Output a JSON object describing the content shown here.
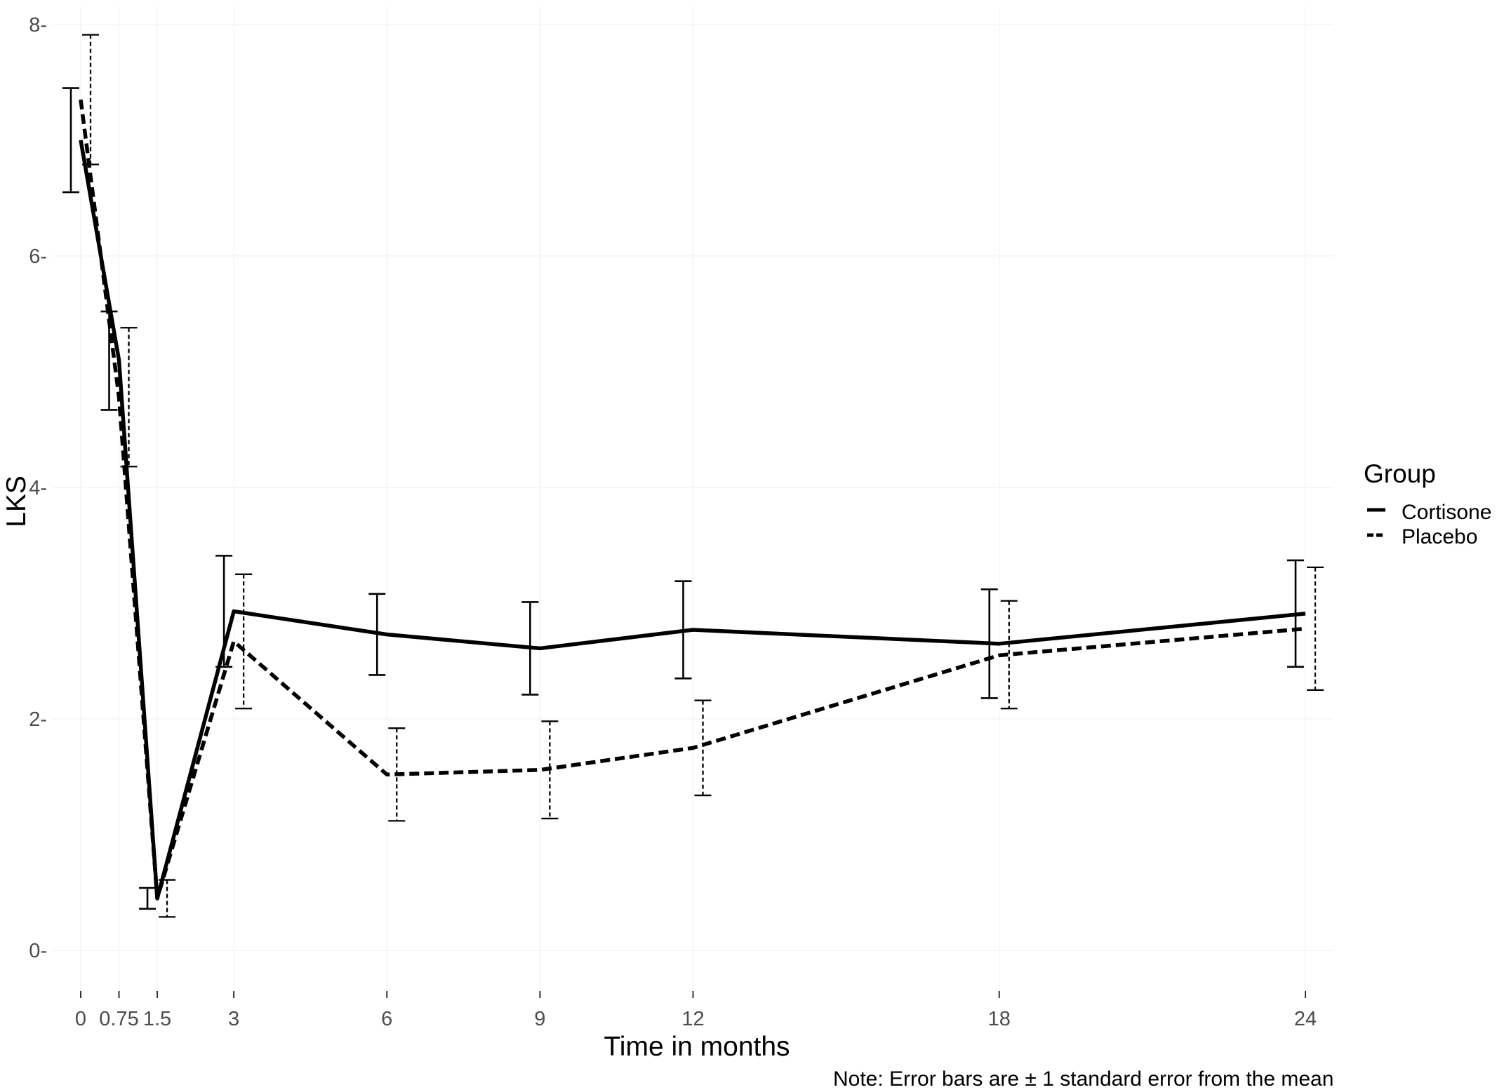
{
  "chart_data": {
    "type": "line",
    "xlabel": "Time in months",
    "ylabel": "LKS",
    "x": [
      0,
      0.75,
      1.5,
      3,
      6,
      9,
      12,
      18,
      24
    ],
    "x_tick_labels": [
      "0",
      "0.75",
      "1.5",
      "3",
      "6",
      "9",
      "12",
      "18",
      "24"
    ],
    "y_ticks": [
      0,
      2,
      4,
      6,
      8
    ],
    "y_tick_labels": [
      "0-",
      "2-",
      "4-",
      "6-",
      "8-"
    ],
    "xlim": [
      -0.55,
      24.55
    ],
    "ylim": [
      -0.35,
      8.15
    ],
    "grid": true,
    "legend": {
      "title": "Group",
      "position": "right"
    },
    "note": "Note: Error bars are ± 1 standard error from the mean",
    "series": [
      {
        "name": "Cortisone",
        "line_style": "solid",
        "values": [
          7.0,
          5.1,
          0.45,
          2.93,
          2.73,
          2.61,
          2.77,
          2.65,
          2.91
        ],
        "lower": [
          6.55,
          4.67,
          0.36,
          2.45,
          2.38,
          2.21,
          2.35,
          2.18,
          2.45
        ],
        "upper": [
          7.45,
          5.52,
          0.54,
          3.41,
          3.08,
          3.01,
          3.19,
          3.12,
          3.37
        ]
      },
      {
        "name": "Placebo",
        "line_style": "dashed",
        "values": [
          7.35,
          4.78,
          0.45,
          2.67,
          1.52,
          1.56,
          1.75,
          2.55,
          2.78
        ],
        "lower": [
          6.79,
          4.18,
          0.29,
          2.09,
          1.12,
          1.14,
          1.34,
          2.09,
          2.25
        ],
        "upper": [
          7.91,
          5.38,
          0.61,
          3.25,
          1.92,
          1.98,
          2.16,
          3.02,
          3.31
        ]
      }
    ]
  }
}
